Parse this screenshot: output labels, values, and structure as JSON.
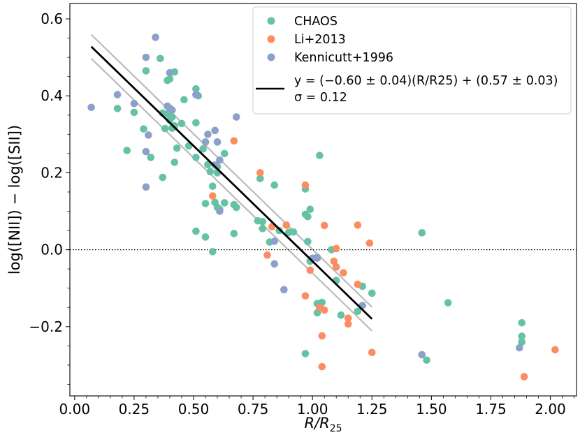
{
  "chart_data": {
    "type": "scatter",
    "xlabel": "R/R25",
    "ylabel": "log([NII]) − log([SII])",
    "xlim": [
      -0.02,
      2.11
    ],
    "ylim": [
      -0.38,
      0.64
    ],
    "xticks": [
      "0.00",
      "0.25",
      "0.50",
      "0.75",
      "1.00",
      "1.25",
      "1.50",
      "1.75",
      "2.00"
    ],
    "xtick_values": [
      0,
      0.25,
      0.5,
      0.75,
      1.0,
      1.25,
      1.5,
      1.75,
      2.0
    ],
    "yticks": [
      "−0.2",
      "0.0",
      "0.2",
      "0.4",
      "0.6"
    ],
    "ytick_values": [
      -0.2,
      0,
      0.2,
      0.4,
      0.6
    ],
    "legend_position": "top-right",
    "reference_line": {
      "y": 0,
      "style": "dotted"
    },
    "series": [
      {
        "name": "CHAOS",
        "color": "#66c2a5",
        "points": [
          [
            0.3,
            0.465
          ],
          [
            0.36,
            0.497
          ],
          [
            0.42,
            0.462
          ],
          [
            0.4,
            0.444
          ],
          [
            0.39,
            0.44
          ],
          [
            0.51,
            0.418
          ],
          [
            0.46,
            0.39
          ],
          [
            0.52,
            0.4
          ],
          [
            0.18,
            0.367
          ],
          [
            0.25,
            0.357
          ],
          [
            0.37,
            0.355
          ],
          [
            0.39,
            0.353
          ],
          [
            0.41,
            0.345
          ],
          [
            0.4,
            0.337
          ],
          [
            0.42,
            0.322
          ],
          [
            0.45,
            0.328
          ],
          [
            0.38,
            0.315
          ],
          [
            0.51,
            0.33
          ],
          [
            0.29,
            0.314
          ],
          [
            0.41,
            0.316
          ],
          [
            0.48,
            0.27
          ],
          [
            0.43,
            0.264
          ],
          [
            0.54,
            0.262
          ],
          [
            0.22,
            0.258
          ],
          [
            0.32,
            0.24
          ],
          [
            0.37,
            0.188
          ],
          [
            0.42,
            0.227
          ],
          [
            0.51,
            0.24
          ],
          [
            0.56,
            0.221
          ],
          [
            0.6,
            0.216
          ],
          [
            0.63,
            0.25
          ],
          [
            0.6,
            0.2
          ],
          [
            0.57,
            0.203
          ],
          [
            0.58,
            0.165
          ],
          [
            0.55,
            0.12
          ],
          [
            0.59,
            0.123
          ],
          [
            0.63,
            0.122
          ],
          [
            0.6,
            0.11
          ],
          [
            0.61,
            0.105
          ],
          [
            0.68,
            0.11
          ],
          [
            0.67,
            0.117
          ],
          [
            0.51,
            0.048
          ],
          [
            0.55,
            0.033
          ],
          [
            0.67,
            0.042
          ],
          [
            0.58,
            -0.005
          ],
          [
            0.78,
            0.185
          ],
          [
            0.84,
            0.168
          ],
          [
            0.77,
            0.075
          ],
          [
            0.79,
            0.073
          ],
          [
            0.79,
            0.055
          ],
          [
            0.82,
            0.02
          ],
          [
            0.86,
            0.05
          ],
          [
            0.9,
            0.045
          ],
          [
            0.92,
            0.046
          ],
          [
            0.97,
            0.158
          ],
          [
            0.97,
            0.092
          ],
          [
            0.98,
            0.086
          ],
          [
            0.99,
            0.105
          ],
          [
            1.03,
            0.245
          ],
          [
            0.98,
            0.021
          ],
          [
            0.99,
            -0.03
          ],
          [
            1.02,
            -0.02
          ],
          [
            1.08,
            0.0
          ],
          [
            1.1,
            -0.08
          ],
          [
            1.21,
            -0.095
          ],
          [
            1.02,
            -0.14
          ],
          [
            1.04,
            -0.137
          ],
          [
            1.03,
            -0.15
          ],
          [
            1.02,
            -0.164
          ],
          [
            1.12,
            -0.17
          ],
          [
            1.19,
            -0.16
          ],
          [
            1.25,
            -0.113
          ],
          [
            0.97,
            -0.27
          ],
          [
            1.46,
            0.044
          ],
          [
            1.57,
            -0.138
          ],
          [
            1.48,
            -0.287
          ],
          [
            1.88,
            -0.19
          ],
          [
            1.88,
            -0.225
          ],
          [
            1.88,
            -0.24
          ]
        ]
      },
      {
        "name": "Li+2013",
        "color": "#fc8d62",
        "points": [
          [
            0.67,
            0.283
          ],
          [
            0.78,
            0.2
          ],
          [
            0.83,
            0.06
          ],
          [
            0.89,
            0.064
          ],
          [
            0.97,
            0.168
          ],
          [
            1.05,
            0.063
          ],
          [
            1.19,
            0.064
          ],
          [
            1.24,
            0.017
          ],
          [
            0.58,
            0.14
          ],
          [
            0.81,
            -0.014
          ],
          [
            0.99,
            -0.053
          ],
          [
            1.1,
            0.003
          ],
          [
            1.09,
            -0.03
          ],
          [
            1.1,
            -0.045
          ],
          [
            1.13,
            -0.06
          ],
          [
            1.19,
            -0.09
          ],
          [
            0.97,
            -0.12
          ],
          [
            1.03,
            -0.15
          ],
          [
            1.05,
            -0.157
          ],
          [
            1.15,
            -0.178
          ],
          [
            1.15,
            -0.193
          ],
          [
            1.04,
            -0.224
          ],
          [
            1.25,
            -0.267
          ],
          [
            1.04,
            -0.304
          ],
          [
            2.02,
            -0.26
          ],
          [
            1.89,
            -0.33
          ]
        ]
      },
      {
        "name": "Kennicutt+1996",
        "color": "#8da0cb",
        "points": [
          [
            0.34,
            0.552
          ],
          [
            0.3,
            0.5
          ],
          [
            0.4,
            0.46
          ],
          [
            0.07,
            0.37
          ],
          [
            0.18,
            0.403
          ],
          [
            0.25,
            0.38
          ],
          [
            0.39,
            0.373
          ],
          [
            0.4,
            0.368
          ],
          [
            0.41,
            0.363
          ],
          [
            0.51,
            0.403
          ],
          [
            0.59,
            0.31
          ],
          [
            0.56,
            0.3
          ],
          [
            0.6,
            0.28
          ],
          [
            0.31,
            0.298
          ],
          [
            0.68,
            0.345
          ],
          [
            0.3,
            0.255
          ],
          [
            0.55,
            0.28
          ],
          [
            0.61,
            0.233
          ],
          [
            0.59,
            0.22
          ],
          [
            0.3,
            0.163
          ],
          [
            0.61,
            0.1
          ],
          [
            0.84,
            0.022
          ],
          [
            0.84,
            -0.037
          ],
          [
            0.88,
            -0.104
          ],
          [
            1.0,
            -0.022
          ],
          [
            1.02,
            -0.022
          ],
          [
            1.21,
            -0.145
          ],
          [
            1.46,
            -0.273
          ],
          [
            1.87,
            -0.255
          ]
        ]
      }
    ],
    "fit": {
      "label_line1": "y = (−0.60 ± 0.04)(R/R25) + (0.57 ± 0.03)",
      "label_line2": "σ = 0.12",
      "slope": -0.6,
      "intercept": 0.57,
      "sigma": 0.12,
      "x_range": [
        0.07,
        1.25
      ],
      "color": "#000000",
      "band_color": "#bbbbbb"
    },
    "grid": false
  }
}
